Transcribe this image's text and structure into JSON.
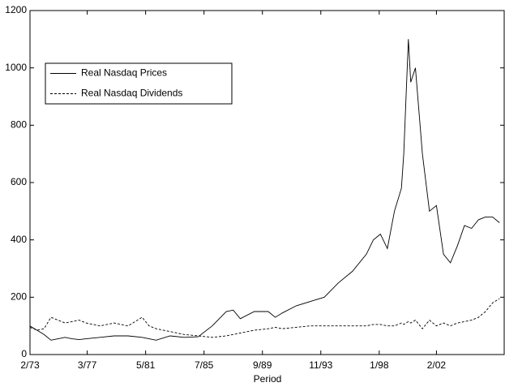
{
  "chart_data": {
    "type": "line",
    "xlabel": "Period",
    "x": [
      0,
      6,
      12,
      18,
      24,
      30,
      36,
      42,
      48,
      60,
      72,
      84,
      96,
      102,
      108,
      120,
      132,
      144,
      156,
      168,
      174,
      180,
      192,
      204,
      210,
      216,
      228,
      240,
      252,
      264,
      276,
      288,
      294,
      300,
      306,
      312,
      318,
      320,
      324,
      326,
      330,
      336,
      342,
      348,
      354,
      360,
      366,
      372,
      378,
      384,
      390,
      396,
      402
    ],
    "series": [
      {
        "name": "Real Nasdaq Prices",
        "color": "#000000",
        "style": "solid",
        "values": [
          100,
          85,
          70,
          50,
          55,
          60,
          55,
          52,
          55,
          60,
          65,
          65,
          60,
          55,
          50,
          65,
          60,
          62,
          100,
          150,
          155,
          125,
          150,
          150,
          130,
          145,
          170,
          185,
          200,
          250,
          290,
          350,
          400,
          420,
          370,
          500,
          580,
          700,
          1100,
          950,
          1000,
          700,
          500,
          520,
          350,
          320,
          380,
          450,
          440,
          470,
          480,
          480,
          460
        ]
      },
      {
        "name": "Real Nasdaq Dividends",
        "color": "#000000",
        "style": "dashed",
        "values": [
          95,
          85,
          90,
          130,
          120,
          110,
          115,
          120,
          110,
          100,
          110,
          100,
          130,
          100,
          90,
          80,
          70,
          65,
          60,
          65,
          70,
          75,
          85,
          90,
          95,
          90,
          95,
          100,
          100,
          100,
          100,
          100,
          105,
          105,
          100,
          100,
          110,
          105,
          115,
          110,
          120,
          90,
          120,
          100,
          110,
          100,
          110,
          115,
          120,
          130,
          150,
          180,
          195
        ]
      }
    ],
    "xlim": [
      0,
      406
    ],
    "xticks": [
      {
        "value": 0,
        "label": "2/73"
      },
      {
        "value": 49,
        "label": "3/77"
      },
      {
        "value": 99,
        "label": "5/81"
      },
      {
        "value": 149,
        "label": "7/85"
      },
      {
        "value": 199,
        "label": "9/89"
      },
      {
        "value": 249,
        "label": "11/93"
      },
      {
        "value": 299,
        "label": "1/98"
      },
      {
        "value": 348,
        "label": "2/02"
      }
    ],
    "ylim": [
      0,
      1200
    ],
    "yticks": [
      0,
      200,
      400,
      600,
      800,
      1000,
      1200
    ],
    "grid": false,
    "legend": "upper-left"
  }
}
